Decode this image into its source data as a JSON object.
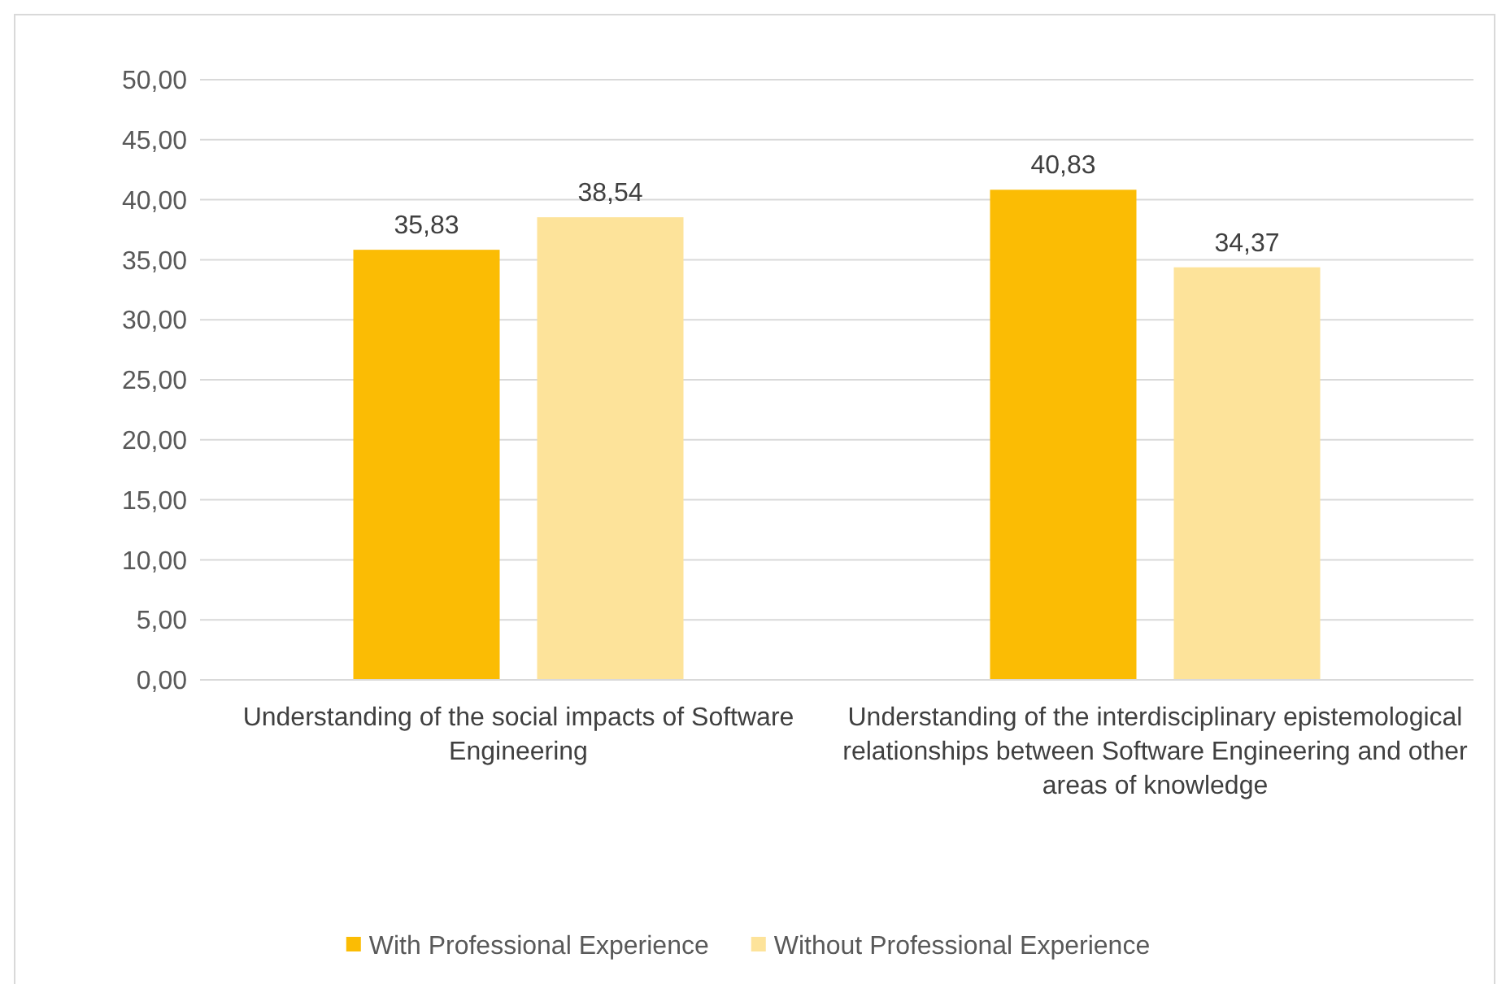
{
  "chart_data": {
    "type": "bar",
    "categories": [
      "Understanding of the social impacts of Software Engineering",
      "Understanding of the interdisciplinary epistemological relationships between Software Engineering and other areas of knowledge"
    ],
    "series": [
      {
        "name": "With Professional Experience",
        "color": "#fbbc04",
        "values": [
          35.83,
          40.83
        ],
        "value_labels": [
          "35,83",
          "40,83"
        ]
      },
      {
        "name": "Without Professional Experience",
        "color": "#fde39a",
        "values": [
          38.54,
          34.37
        ],
        "value_labels": [
          "38,54",
          "34,37"
        ]
      }
    ],
    "ylim": [
      0,
      50
    ],
    "yticks": [
      {
        "value": 0,
        "label": "0,00"
      },
      {
        "value": 5,
        "label": "5,00"
      },
      {
        "value": 10,
        "label": "10,00"
      },
      {
        "value": 15,
        "label": "15,00"
      },
      {
        "value": 20,
        "label": "20,00"
      },
      {
        "value": 25,
        "label": "25,00"
      },
      {
        "value": 30,
        "label": "30,00"
      },
      {
        "value": 35,
        "label": "35,00"
      },
      {
        "value": 40,
        "label": "40,00"
      },
      {
        "value": 45,
        "label": "45,00"
      },
      {
        "value": 50,
        "label": "50,00"
      }
    ],
    "grid": "y",
    "legend": "bottom"
  }
}
